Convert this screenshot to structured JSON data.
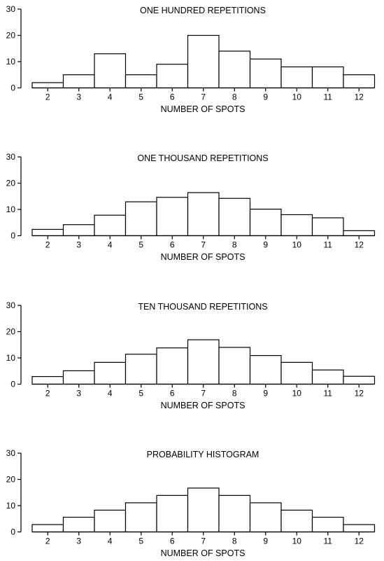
{
  "chart_data": [
    {
      "type": "bar",
      "title": "ONE HUNDRED REPETITIONS",
      "xlabel": "NUMBER OF SPOTS",
      "ylabel": "",
      "categories": [
        "2",
        "3",
        "4",
        "5",
        "6",
        "7",
        "8",
        "9",
        "10",
        "11",
        "12"
      ],
      "values": [
        2,
        5,
        13,
        5,
        9,
        20,
        14,
        11,
        8,
        8,
        5
      ],
      "ylim": [
        0,
        30
      ],
      "yticks": [
        0,
        10,
        20,
        30
      ],
      "grid": false
    },
    {
      "type": "bar",
      "title": "ONE THOUSAND REPETITIONS",
      "xlabel": "NUMBER OF SPOTS",
      "ylabel": "",
      "categories": [
        "2",
        "3",
        "4",
        "5",
        "6",
        "7",
        "8",
        "9",
        "10",
        "11",
        "12"
      ],
      "values": [
        2.4,
        4.2,
        7.8,
        12.9,
        14.6,
        16.4,
        14.2,
        10.1,
        8.0,
        6.8,
        1.9
      ],
      "ylim": [
        0,
        30
      ],
      "yticks": [
        0,
        10,
        20,
        30
      ],
      "grid": false
    },
    {
      "type": "bar",
      "title": "TEN THOUSAND REPETITIONS",
      "xlabel": "NUMBER OF SPOTS",
      "ylabel": "",
      "categories": [
        "2",
        "3",
        "4",
        "5",
        "6",
        "7",
        "8",
        "9",
        "10",
        "11",
        "12"
      ],
      "values": [
        2.9,
        5.1,
        8.3,
        11.4,
        13.8,
        16.9,
        14.0,
        10.9,
        8.3,
        5.4,
        3.0
      ],
      "ylim": [
        0,
        30
      ],
      "yticks": [
        0,
        10,
        20,
        30
      ],
      "grid": false
    },
    {
      "type": "bar",
      "title": "PROBABILITY HISTOGRAM",
      "xlabel": "NUMBER OF SPOTS",
      "ylabel": "",
      "categories": [
        "2",
        "3",
        "4",
        "5",
        "6",
        "7",
        "8",
        "9",
        "10",
        "11",
        "12"
      ],
      "values": [
        2.8,
        5.6,
        8.3,
        11.1,
        13.9,
        16.7,
        13.9,
        11.1,
        8.3,
        5.6,
        2.8
      ],
      "ylim": [
        0,
        30
      ],
      "yticks": [
        0,
        10,
        20,
        30
      ],
      "grid": false
    }
  ]
}
